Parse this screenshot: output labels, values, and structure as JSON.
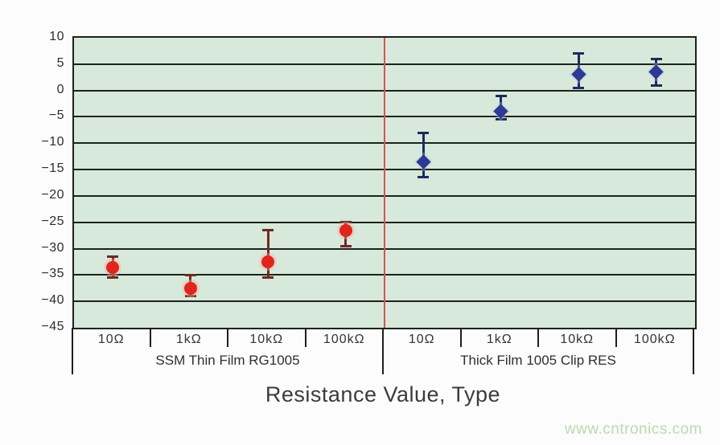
{
  "page": {
    "background": "#fcfcfc"
  },
  "chart_data": {
    "type": "scatter",
    "title": "",
    "xlabel": "Resistance Value, Type",
    "ylabel": "",
    "ylim": [
      -45,
      10
    ],
    "grid": true,
    "plot_bg": "#d7e9da",
    "grid_color": "#1e221e",
    "divider_color": "#d4574e",
    "ytick_values": [
      10,
      5,
      0,
      -5,
      -10,
      -15,
      -20,
      -25,
      -30,
      -35,
      -40,
      -45
    ],
    "ytick_labels": [
      "10",
      "5",
      "0",
      "−5",
      "−10",
      "−15",
      "−20",
      "−25",
      "−30",
      "−35",
      "−40",
      "−45"
    ],
    "categories": [
      "10Ω",
      "1kΩ",
      "10kΩ",
      "100kΩ",
      "10Ω",
      "1kΩ",
      "10kΩ",
      "100kΩ"
    ],
    "series": [
      {
        "name": "SSM Thin Film RG1005",
        "marker": "circle",
        "color": "#df251c",
        "error_color": "#6e2a22",
        "x": [
          "10Ω",
          "1kΩ",
          "10kΩ",
          "100kΩ"
        ],
        "y": [
          -33.5,
          -37.5,
          -32.5,
          -26.5
        ],
        "err_high": [
          -31.5,
          -35,
          -26.5,
          -25
        ],
        "err_low": [
          -35.5,
          -39,
          -35.5,
          -29.5
        ]
      },
      {
        "name": "Thick Film 1005 Clip RES",
        "marker": "diamond",
        "color": "#2c3a94",
        "error_color": "#1e2a5e",
        "x": [
          "10Ω",
          "1kΩ",
          "10kΩ",
          "100kΩ"
        ],
        "y": [
          -13.5,
          -4,
          3,
          3.5
        ],
        "err_high": [
          -8,
          -1,
          7,
          6
        ],
        "err_low": [
          -16.5,
          -5.5,
          0.5,
          1
        ]
      }
    ],
    "group_labels": [
      "SSM Thin Film RG1005",
      "Thick Film 1005 Clip RES"
    ],
    "legend": "none"
  },
  "watermark": {
    "text": "www.cntronics.com",
    "color": "#b7ddae"
  }
}
